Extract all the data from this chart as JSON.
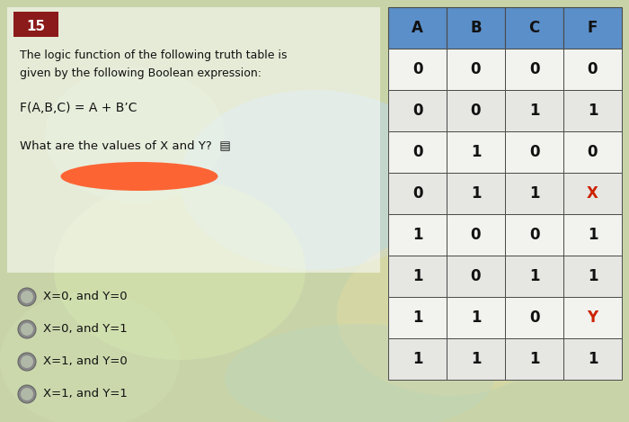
{
  "question_number": "15",
  "question_number_bg": "#8B1A1A",
  "question_number_color": "#ffffff",
  "title_line1": "The logic function of the following truth table is",
  "title_line2": "given by the following Boolean expression:",
  "formula": "F(A,B,C) = A + B’C",
  "sub_question": "What are the values of X and Y?",
  "table_headers": [
    "A",
    "B",
    "C",
    "F"
  ],
  "table_data": [
    [
      "0",
      "0",
      "0",
      "0"
    ],
    [
      "0",
      "0",
      "1",
      "1"
    ],
    [
      "0",
      "1",
      "0",
      "0"
    ],
    [
      "0",
      "1",
      "1",
      "X"
    ],
    [
      "1",
      "0",
      "0",
      "1"
    ],
    [
      "1",
      "0",
      "1",
      "1"
    ],
    [
      "1",
      "1",
      "0",
      "Y"
    ],
    [
      "1",
      "1",
      "1",
      "1"
    ]
  ],
  "special_color": "#cc2200",
  "header_bg": "#5b8fc9",
  "header_text": "#111111",
  "row_bg_light": "#f2f2ee",
  "row_bg_dark": "#e6e6e2",
  "table_text_color": "#111111",
  "options": [
    "X=0, and Y=0",
    "X=0, and Y=1",
    "X=1, and Y=0",
    "X=1, and Y=1"
  ],
  "highlight_color": "#ff5522",
  "panel_bg": "#dde8cc",
  "swirl_colors": [
    "#c8ddb0",
    "#b8cfa0",
    "#d0e0b8",
    "#c0d4a8",
    "#b0c898"
  ],
  "table_border": "#4a4a4a",
  "radio_outer": "#888888",
  "radio_inner": "#b0b8a8"
}
